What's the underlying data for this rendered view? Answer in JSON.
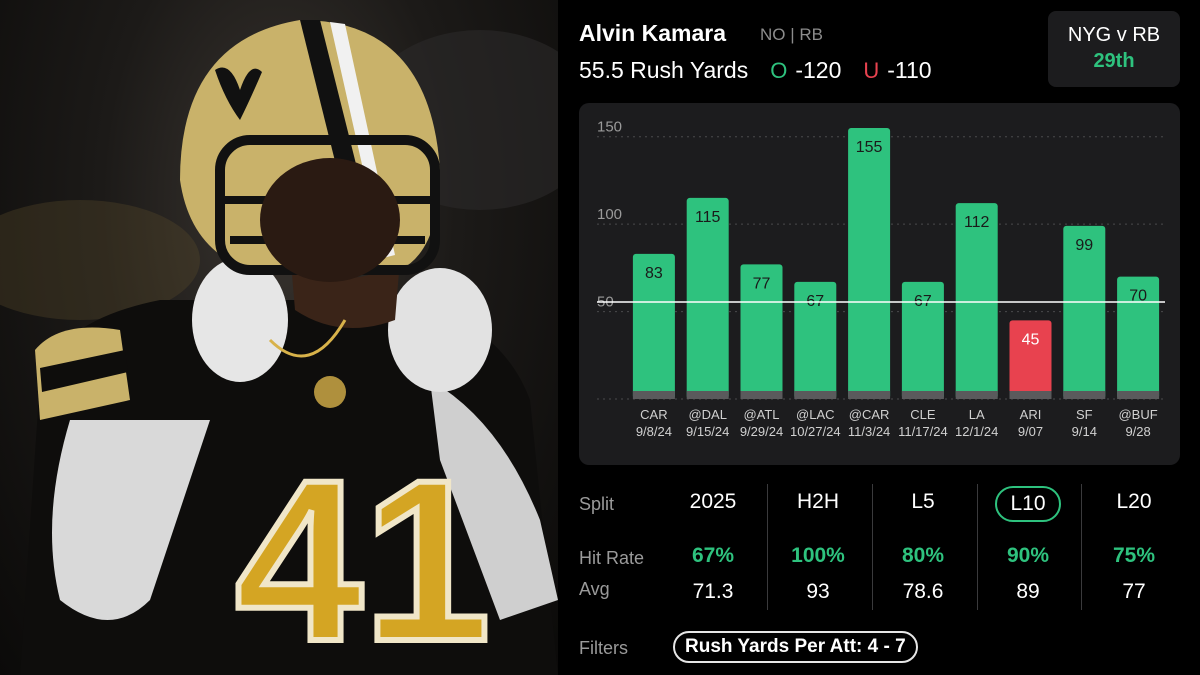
{
  "player": {
    "name": "Alvin Kamara",
    "team_pos": "NO | RB",
    "prop": "55.5 Rush Yards",
    "over_symbol": "O",
    "over_price": "-120",
    "under_symbol": "U",
    "under_price": "-110"
  },
  "matchup": {
    "title": "NYG v RB",
    "rank": "29th"
  },
  "colors": {
    "hit": "#2ec27e",
    "miss": "#e8424f",
    "card": "#1c1c1e"
  },
  "chart_data": {
    "type": "bar",
    "categories": [
      "CAR",
      "@DAL",
      "@ATL",
      "@LAC",
      "@CAR",
      "CLE",
      "LA",
      "ARI",
      "SF",
      "@BUF"
    ],
    "dates": [
      "9/8/24",
      "9/15/24",
      "9/29/24",
      "10/27/24",
      "11/3/24",
      "11/17/24",
      "12/1/24",
      "9/07",
      "9/14",
      "9/28"
    ],
    "values": [
      83,
      115,
      77,
      67,
      155,
      67,
      112,
      45,
      99,
      70
    ],
    "line": 55.5,
    "y_ticks": [
      50,
      100,
      150
    ],
    "ylim": [
      0,
      155
    ],
    "grid": true,
    "bar_colors": [
      "hit",
      "hit",
      "hit",
      "hit",
      "hit",
      "hit",
      "hit",
      "miss",
      "hit",
      "hit"
    ]
  },
  "splits": {
    "row_labels": {
      "split": "Split",
      "hit_rate": "Hit Rate",
      "avg": "Avg"
    },
    "columns": [
      {
        "label": "2025",
        "hit_rate": "67%",
        "avg": "71.3",
        "selected": false
      },
      {
        "label": "H2H",
        "hit_rate": "100%",
        "avg": "93",
        "selected": false
      },
      {
        "label": "L5",
        "hit_rate": "80%",
        "avg": "78.6",
        "selected": false
      },
      {
        "label": "L10",
        "hit_rate": "90%",
        "avg": "89",
        "selected": true
      },
      {
        "label": "L20",
        "hit_rate": "75%",
        "avg": "77",
        "selected": false
      }
    ]
  },
  "filters": {
    "label": "Filters",
    "active": "Rush Yards Per Att: 4 - 7"
  }
}
